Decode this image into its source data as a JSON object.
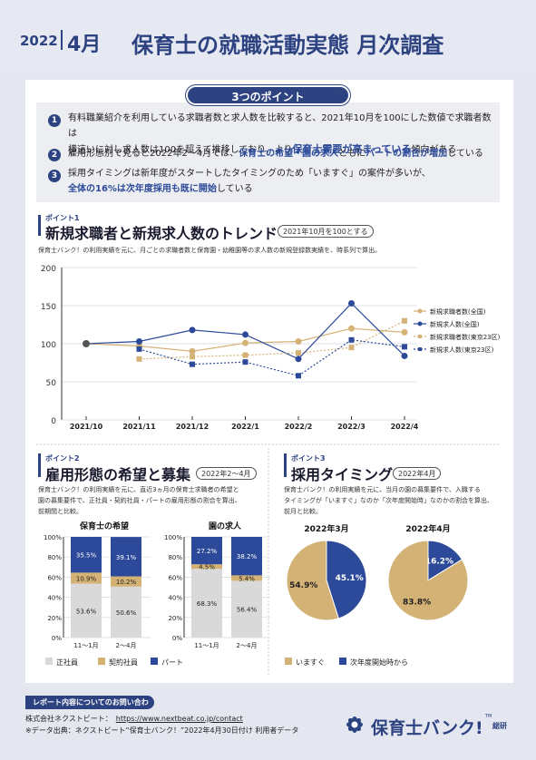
{
  "header": {
    "year": "2022",
    "month": "4月",
    "title": "保育士の就職活動実態 月次調査"
  },
  "points": {
    "pill": "3つのポイント",
    "items": [
      {
        "num": "1",
        "line1": "有料職業紹介を利用している求職者数と求人数を比較すると、2021年10月を100にした数値で求職者数は",
        "line2a": "横這いに対し求人数は100を超えて推移しており、より",
        "line2b": "保育士需要が高まっている",
        "line2c": "傾向がある"
      },
      {
        "num": "2",
        "a": "雇用形態別で見ると2022年2～4月では、",
        "b": "保育士の希望・園の求人",
        "c": "ともに",
        "d": "パートの割合が増加",
        "e": "している"
      },
      {
        "num": "3",
        "line1": "採用タイミングは新年度がスタートしたタイミングのため「いますぐ」の案件が多いが、",
        "line2a": "全体の16%は次年度採用も既に開始",
        "line2b": "している"
      }
    ]
  },
  "s1": {
    "tag": "ポイント1",
    "title": "新規求職者と新規求人数のトレンド",
    "badge": "2021年10月を100とする",
    "desc": "保育士バンク！の利用実績を元に、月ごとの求職者数と保育園・幼稚園等の求人数の新規登録数実績を、時系列で算出。"
  },
  "chart_data": [
    {
      "type": "line",
      "x": [
        "2021/10",
        "2021/11",
        "2021/12",
        "2022/1",
        "2022/2",
        "2022/3",
        "2022/4"
      ],
      "ylim": [
        0,
        200
      ],
      "yticks": [
        0,
        50,
        100,
        150,
        200
      ],
      "series": [
        {
          "name": "新規求職者数(全国)",
          "color": "#d4b276",
          "dashed": false,
          "marker": "circle",
          "values": [
            100,
            97,
            90,
            101,
            103,
            120,
            115
          ]
        },
        {
          "name": "新規求人数(全国)",
          "color": "#2d4a9a",
          "dashed": false,
          "marker": "circle",
          "values": [
            100,
            103,
            118,
            112,
            80,
            153,
            84
          ]
        },
        {
          "name": "新規求職者数(東京23区)",
          "color": "#d4b276",
          "dashed": true,
          "marker": "square",
          "values": [
            null,
            80,
            83,
            85,
            88,
            95,
            130
          ]
        },
        {
          "name": "新規求人数(東京23区)",
          "color": "#2d4a9a",
          "dashed": true,
          "marker": "square",
          "values": [
            null,
            93,
            73,
            76,
            58,
            105,
            96
          ]
        }
      ]
    },
    {
      "type": "bar",
      "stacked": true,
      "title": "保育士の希望",
      "categories": [
        "11～1月",
        "2～4月"
      ],
      "yticks": [
        "0%",
        "20%",
        "40%",
        "60%",
        "80%",
        "100%"
      ],
      "series": [
        {
          "name": "正社員",
          "color": "#d9d9d9",
          "values": [
            53.6,
            50.6
          ]
        },
        {
          "name": "契約社員",
          "color": "#d4b276",
          "values": [
            10.9,
            10.2
          ]
        },
        {
          "name": "パート",
          "color": "#2d4a9a",
          "values": [
            35.5,
            39.1
          ]
        }
      ]
    },
    {
      "type": "bar",
      "stacked": true,
      "title": "園の求人",
      "categories": [
        "11～1月",
        "2～4月"
      ],
      "yticks": [
        "0%",
        "20%",
        "40%",
        "60%",
        "80%",
        "100%"
      ],
      "series": [
        {
          "name": "正社員",
          "color": "#d9d9d9",
          "values": [
            68.3,
            56.4
          ]
        },
        {
          "name": "契約社員",
          "color": "#d4b276",
          "values": [
            4.5,
            5.4
          ]
        },
        {
          "name": "パート",
          "color": "#2d4a9a",
          "values": [
            27.2,
            38.2
          ]
        }
      ]
    },
    {
      "type": "pie",
      "title": "2022年3月",
      "slices": [
        {
          "name": "いますぐ",
          "value": 54.9,
          "color": "#d4b276"
        },
        {
          "name": "次年度開始時から",
          "value": 45.1,
          "color": "#2d4a9a"
        }
      ]
    },
    {
      "type": "pie",
      "title": "2022年4月",
      "slices": [
        {
          "name": "いますぐ",
          "value": 83.8,
          "color": "#d4b276"
        },
        {
          "name": "次年度開始時から",
          "value": 16.2,
          "color": "#2d4a9a"
        }
      ]
    }
  ],
  "s2": {
    "tag": "ポイント2",
    "title": "雇用形態の希望と募集",
    "badge": "2022年2～4月",
    "desc1": "保育士バンク！の利用実績を元に、直近3ヵ月の保育士求職者の希望と",
    "desc2": "園の募集要件で、正社員・契約社員・パートの雇用形態の割合を算出、",
    "desc3": "前期間と比較。",
    "legend": [
      "正社員",
      "契約社員",
      "パート"
    ]
  },
  "s3": {
    "tag": "ポイント3",
    "title": "採用タイミング",
    "badge": "2022年4月",
    "desc1": "保育士バンク！の利用実績を元に、当月の園の募集要件で、入職する",
    "desc2": "タイミングが「いますぐ」なのか「次年度開始時」なのかの割合を算出、",
    "desc3": "前月と比較。",
    "legend": [
      "いますぐ",
      "次年度開始時から"
    ]
  },
  "footer": {
    "pill": "レポート内容についてのお問い合わせ",
    "company": "株式会社ネクストビート：",
    "url": "https://www.nextbeat.co.jp/contact",
    "source": "※データ出典：ネクストビート“保育士バンク！”2022年4月30日付け 利用者データ",
    "logo": "保育士バンク!",
    "logo_sub": "総研",
    "logo_tm": "TM"
  }
}
